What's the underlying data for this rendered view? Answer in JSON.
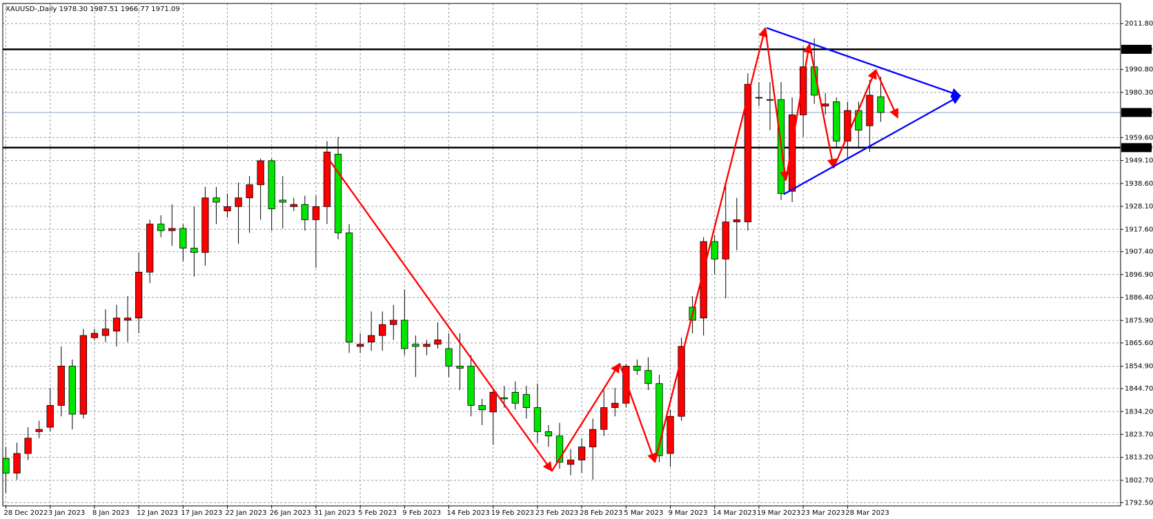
{
  "chart_data": {
    "type": "candlestick",
    "header": "XAUUSD-,Daily  1978.30 1987.51 1966.77 1971.09",
    "categories": [
      "28 Dec 2022",
      null,
      null,
      null,
      "3 Jan 2023",
      null,
      null,
      null,
      "8 Jan 2023",
      null,
      null,
      null,
      "12 Jan 2023",
      null,
      null,
      null,
      "17 Jan 2023",
      null,
      null,
      null,
      "22 Jan 2023",
      null,
      null,
      null,
      "26 Jan 2023",
      null,
      null,
      null,
      "31 Jan 2023",
      null,
      null,
      null,
      "5 Feb 2023",
      null,
      null,
      null,
      "9 Feb 2023",
      null,
      null,
      null,
      "14 Feb 2023",
      null,
      null,
      null,
      "19 Feb 2023",
      null,
      null,
      null,
      "23 Feb 2023",
      null,
      null,
      null,
      "28 Feb 2023",
      null,
      null,
      null,
      "5 Mar 2023",
      null,
      null,
      null,
      "9 Mar 2023",
      null,
      null,
      null,
      "14 Mar 2023",
      null,
      null,
      null,
      "19 Mar 2023",
      null,
      null,
      null,
      "23 Mar 2023",
      null,
      null,
      null,
      "28 Mar 2023",
      null,
      null,
      null
    ],
    "ohlc": [
      [
        1812.7,
        1818,
        1797,
        1806
      ],
      [
        1806,
        1820,
        1803,
        1815
      ],
      [
        1815,
        1827,
        1812,
        1822
      ],
      [
        1825,
        1830,
        1822,
        1826
      ],
      [
        1827,
        1845,
        1825,
        1837
      ],
      [
        1837,
        1864,
        1832,
        1855
      ],
      [
        1855,
        1858,
        1826,
        1833
      ],
      [
        1833,
        1872,
        1831,
        1869
      ],
      [
        1868,
        1872,
        1867,
        1870
      ],
      [
        1869,
        1881,
        1866,
        1872
      ],
      [
        1871,
        1883,
        1864,
        1877
      ],
      [
        1876,
        1887,
        1866,
        1877
      ],
      [
        1877,
        1907,
        1870,
        1898
      ],
      [
        1898,
        1922,
        1893,
        1920
      ],
      [
        1920,
        1924,
        1914,
        1917
      ],
      [
        1917,
        1929,
        1910,
        1918
      ],
      [
        1918,
        1920,
        1903,
        1909
      ],
      [
        1909,
        1928,
        1896,
        1907
      ],
      [
        1907,
        1937,
        1901,
        1932
      ],
      [
        1932,
        1937,
        1920,
        1930
      ],
      [
        1926,
        1934,
        1923,
        1928
      ],
      [
        1928,
        1939,
        1911,
        1932
      ],
      [
        1932,
        1942,
        1916,
        1938
      ],
      [
        1938,
        1950,
        1922,
        1949
      ],
      [
        1949,
        1950,
        1917,
        1927
      ],
      [
        1931,
        1942,
        1918,
        1930
      ],
      [
        1928,
        1932,
        1926,
        1929
      ],
      [
        1929,
        1933,
        1917,
        1922
      ],
      [
        1922,
        1933,
        1900,
        1928
      ],
      [
        1928,
        1958,
        1920,
        1953
      ],
      [
        1952,
        1960,
        1913,
        1916
      ],
      [
        1916,
        1920,
        1861,
        1866
      ],
      [
        1864,
        1870,
        1861,
        1865
      ],
      [
        1866,
        1880,
        1862,
        1869
      ],
      [
        1869,
        1880,
        1862,
        1874
      ],
      [
        1874,
        1883,
        1867,
        1876
      ],
      [
        1876,
        1890,
        1860,
        1863
      ],
      [
        1865,
        1869,
        1850,
        1864
      ],
      [
        1864,
        1867,
        1860,
        1865
      ],
      [
        1865,
        1875,
        1863,
        1867
      ],
      [
        1863,
        1870,
        1850,
        1855
      ],
      [
        1855,
        1870,
        1844,
        1854
      ],
      [
        1855,
        1860,
        1832,
        1837
      ],
      [
        1837,
        1840,
        1828,
        1835
      ],
      [
        1834,
        1845,
        1819,
        1843
      ],
      [
        1840.5,
        1846,
        1836,
        1840
      ],
      [
        1843,
        1848,
        1835,
        1838
      ],
      [
        1842,
        1846,
        1831,
        1836
      ],
      [
        1836,
        1847,
        1820,
        1825
      ],
      [
        1825,
        1828,
        1818,
        1823
      ],
      [
        1823,
        1829,
        1808,
        1811
      ],
      [
        1810,
        1817,
        1805,
        1812
      ],
      [
        1812,
        1822,
        1806,
        1818
      ],
      [
        1818,
        1831,
        1803,
        1826
      ],
      [
        1826,
        1844,
        1823,
        1836
      ],
      [
        1836,
        1845,
        1832,
        1838
      ],
      [
        1838,
        1856,
        1836,
        1855
      ],
      [
        1855,
        1858,
        1851,
        1853
      ],
      [
        1853,
        1859,
        1844,
        1847
      ],
      [
        1847,
        1851,
        1811,
        1814
      ],
      [
        1815,
        1835,
        1809,
        1832
      ],
      [
        1832,
        1868,
        1830,
        1864
      ],
      [
        1882,
        1887,
        1870,
        1876
      ],
      [
        1877,
        1914,
        1869,
        1912
      ],
      [
        1912,
        1915,
        1897,
        1904
      ],
      [
        1904,
        1938,
        1886,
        1921
      ],
      [
        1921,
        1932,
        1908,
        1922
      ],
      [
        1921,
        1989,
        1917,
        1984
      ],
      [
        1978,
        1985,
        1974,
        1978
      ],
      [
        1977,
        1985,
        1963,
        1977
      ],
      [
        1977,
        1985,
        1931,
        1934
      ],
      [
        1935,
        1978,
        1930,
        1970
      ],
      [
        1970,
        2001,
        1960,
        1992
      ],
      [
        1992,
        2005,
        1975,
        1979
      ],
      [
        1974,
        1980,
        1970,
        1975
      ],
      [
        1976,
        1978,
        1955,
        1958
      ],
      [
        1958,
        1976,
        1950,
        1972
      ],
      [
        1972,
        1976,
        1955,
        1963
      ],
      [
        1965,
        1986,
        1953,
        1979
      ],
      [
        1978.3,
        1987.51,
        1966.77,
        1971.09
      ]
    ],
    "up_color": "#ff0000",
    "down_color": "#00e600",
    "ylim": [
      1791.0,
      2021.0
    ],
    "yticks": [
      {
        "value": 2011.8,
        "label": "2011.80"
      },
      {
        "value": 1990.8,
        "label": "1990.80"
      },
      {
        "value": 1980.3,
        "label": "1980.30"
      },
      {
        "value": 1959.6,
        "label": "1959.60"
      },
      {
        "value": 1949.1,
        "label": "1949.10"
      },
      {
        "value": 1938.6,
        "label": "1938.60"
      },
      {
        "value": 1928.1,
        "label": "1928.10"
      },
      {
        "value": 1917.6,
        "label": "1917.60"
      },
      {
        "value": 1907.4,
        "label": "1907.40"
      },
      {
        "value": 1896.9,
        "label": "1896.90"
      },
      {
        "value": 1886.4,
        "label": "1886.40"
      },
      {
        "value": 1875.9,
        "label": "1875.90"
      },
      {
        "value": 1865.6,
        "label": "1865.60"
      },
      {
        "value": 1854.9,
        "label": "1854.90"
      },
      {
        "value": 1844.7,
        "label": "1844.70"
      },
      {
        "value": 1834.2,
        "label": "1834.20"
      },
      {
        "value": 1823.7,
        "label": "1823.70"
      },
      {
        "value": 1813.2,
        "label": "1813.20"
      },
      {
        "value": 1802.7,
        "label": "1802.70"
      },
      {
        "value": 1792.5,
        "label": "1792.50"
      }
    ],
    "hlines": [
      {
        "value": 2000,
        "label": "2000.00",
        "color": "#000000"
      },
      {
        "value": 1955,
        "label": "1955.00",
        "color": "#000000"
      },
      {
        "value": 1971.09,
        "label": "1971.09",
        "color": "#8fa3c8"
      }
    ],
    "grid": true
  }
}
